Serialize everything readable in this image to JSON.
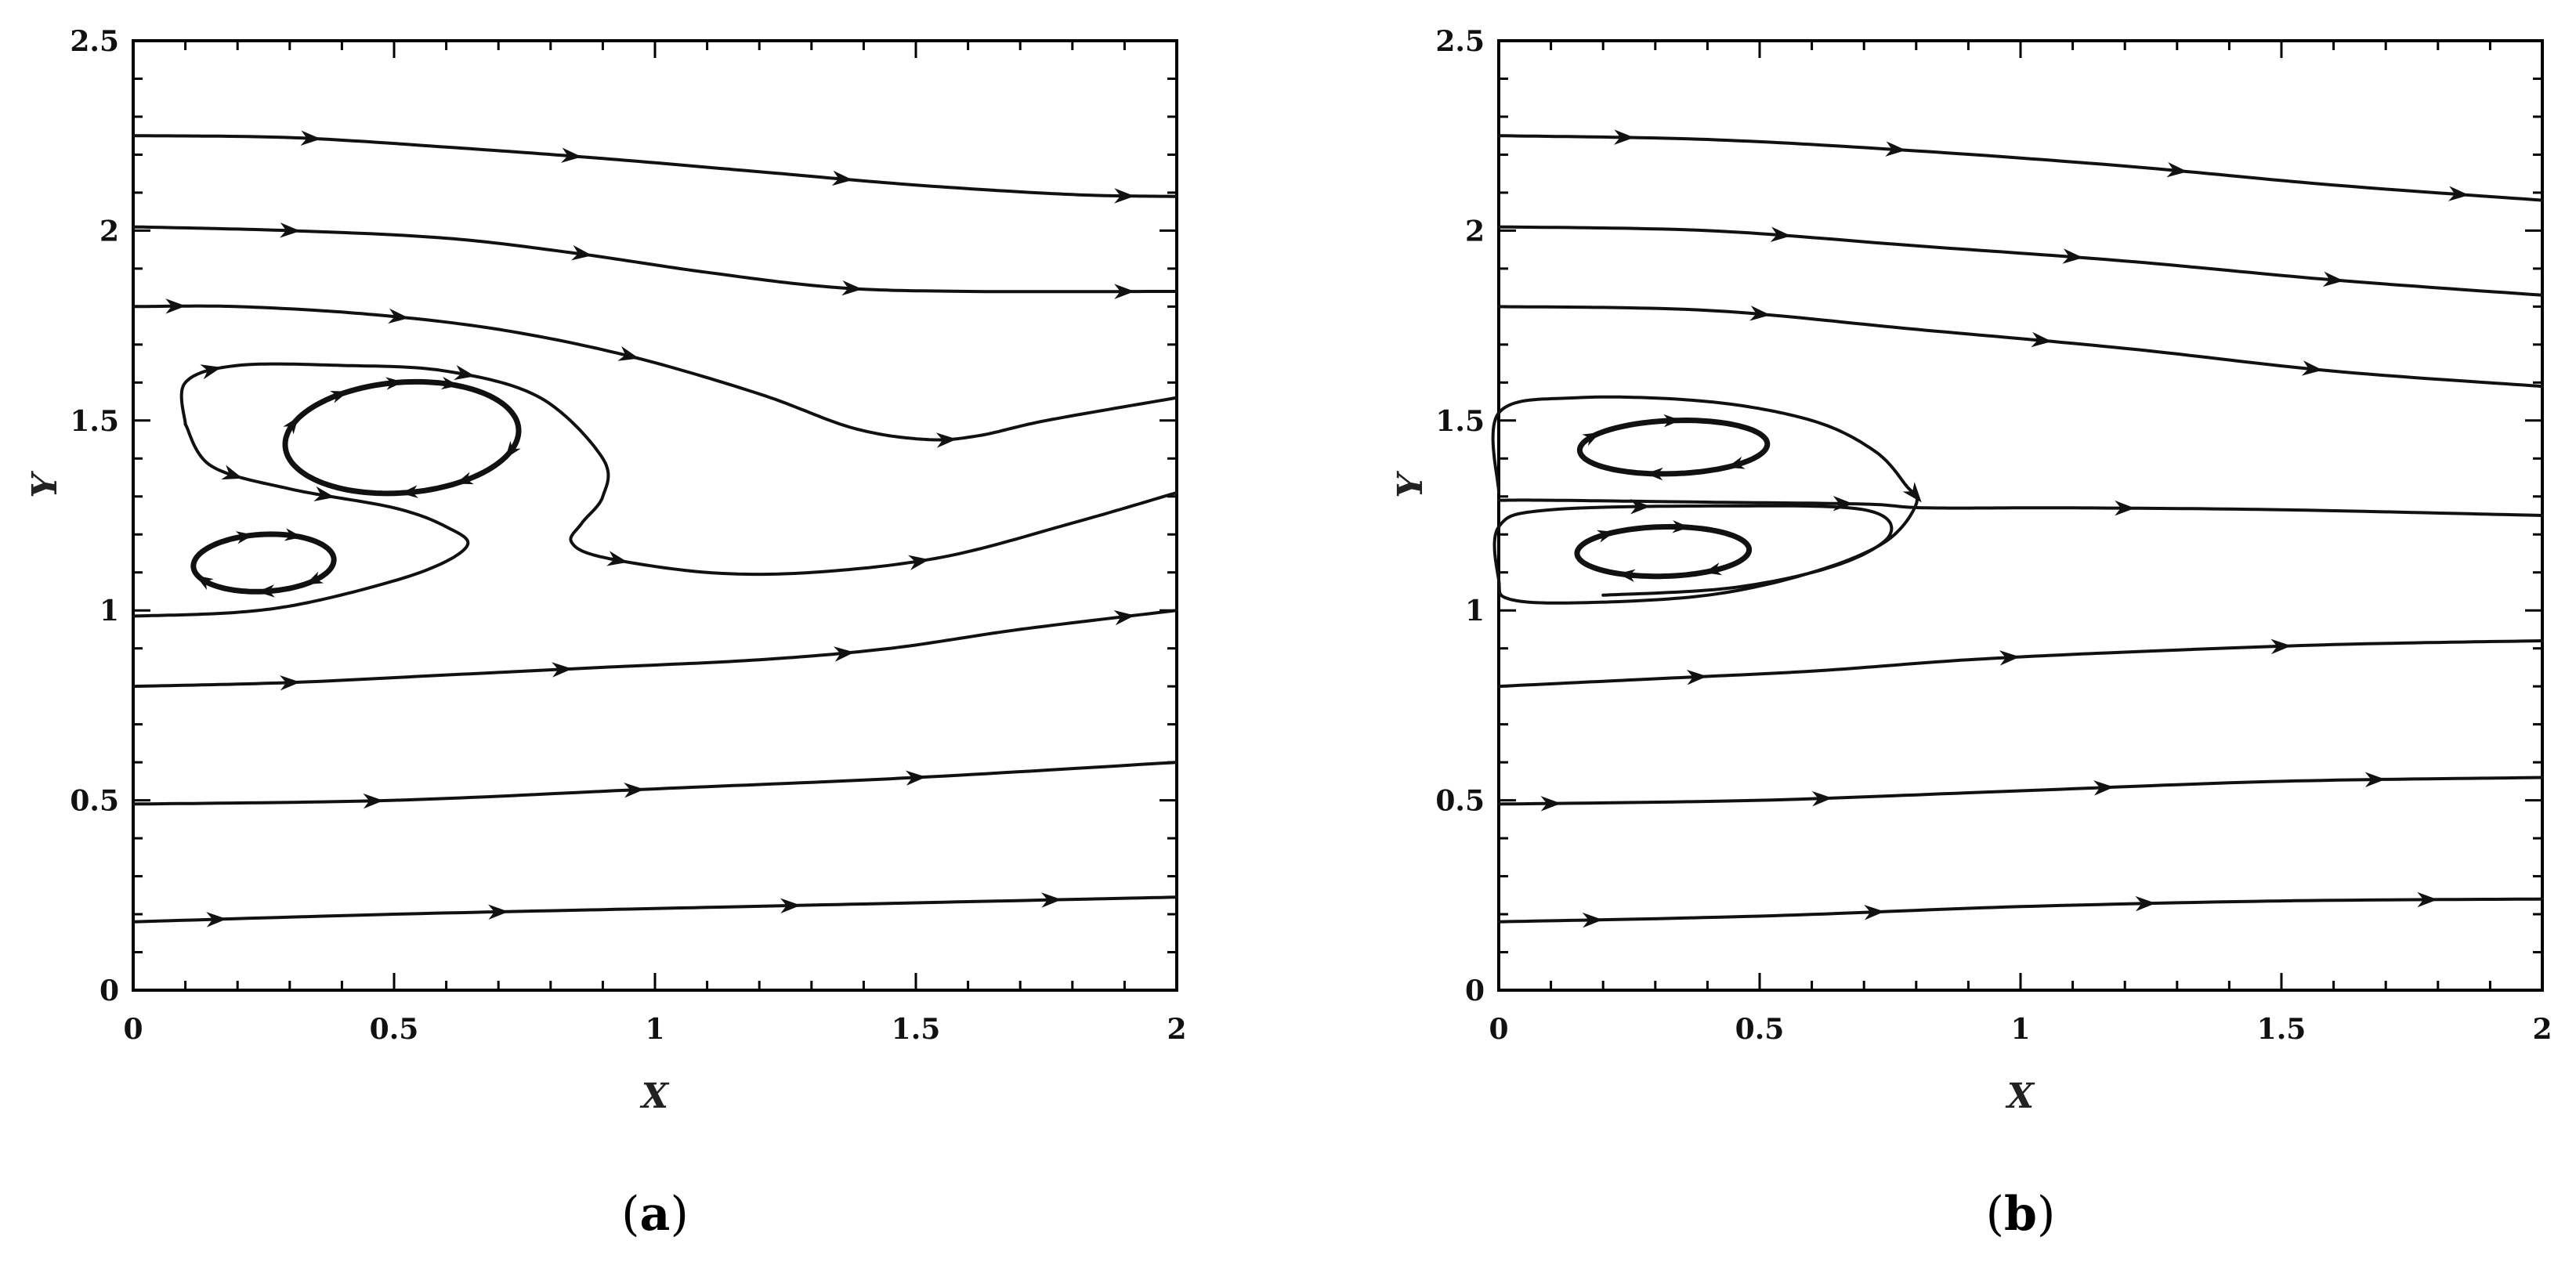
{
  "chart_data": [
    {
      "type": "streamline",
      "panel_label": "a",
      "xlabel": "X",
      "ylabel": "Y",
      "xlim": [
        0,
        2
      ],
      "ylim": [
        0,
        2.5
      ],
      "xticks": [
        0,
        0.5,
        1,
        1.5,
        2
      ],
      "yticks": [
        0,
        0.5,
        1,
        1.5,
        2,
        2.5
      ],
      "xtick_labels": [
        "0",
        "0.5",
        "1",
        "1.5",
        "2"
      ],
      "ytick_labels": [
        "0",
        "0.5",
        "1",
        "1.5",
        "2",
        "2.5"
      ],
      "grid": false,
      "streamlines": [
        {
          "heavy": false,
          "closed": false,
          "arrows": [
            0.17,
            0.42,
            0.68,
            0.95
          ],
          "points": [
            [
              0,
              2.25
            ],
            [
              0.3,
              2.245
            ],
            [
              0.6,
              2.22
            ],
            [
              0.9,
              2.19
            ],
            [
              1.2,
              2.155
            ],
            [
              1.5,
              2.12
            ],
            [
              1.8,
              2.095
            ],
            [
              2,
              2.09
            ]
          ]
        },
        {
          "heavy": false,
          "closed": false,
          "arrows": [
            0.15,
            0.43,
            0.69,
            0.95
          ],
          "points": [
            [
              0,
              2.01
            ],
            [
              0.3,
              2.0
            ],
            [
              0.6,
              1.98
            ],
            [
              0.85,
              1.94
            ],
            [
              1.1,
              1.89
            ],
            [
              1.35,
              1.85
            ],
            [
              1.6,
              1.84
            ],
            [
              2,
              1.84
            ]
          ]
        },
        {
          "heavy": false,
          "closed": false,
          "arrows": [
            0.04,
            0.25,
            0.47,
            0.78
          ],
          "points": [
            [
              0,
              1.8
            ],
            [
              0.2,
              1.8
            ],
            [
              0.45,
              1.78
            ],
            [
              0.7,
              1.74
            ],
            [
              0.95,
              1.67
            ],
            [
              1.2,
              1.57
            ],
            [
              1.38,
              1.48
            ],
            [
              1.52,
              1.45
            ],
            [
              1.62,
              1.46
            ],
            [
              1.75,
              1.5
            ],
            [
              2,
              1.56
            ]
          ]
        },
        {
          "heavy": false,
          "closed": false,
          "arrows": [
            0.06,
            0.27,
            0.53,
            0.78
          ],
          "points": [
            [
              0.1,
              1.49
            ],
            [
              0.1,
              1.6
            ],
            [
              0.2,
              1.645
            ],
            [
              0.4,
              1.645
            ],
            [
              0.6,
              1.63
            ],
            [
              0.78,
              1.56
            ],
            [
              0.9,
              1.4
            ],
            [
              0.9,
              1.3
            ],
            [
              0.86,
              1.23
            ],
            [
              0.84,
              1.18
            ],
            [
              0.9,
              1.14
            ],
            [
              1.1,
              1.1
            ],
            [
              1.3,
              1.1
            ],
            [
              1.55,
              1.14
            ],
            [
              1.8,
              1.23
            ],
            [
              2,
              1.31
            ]
          ]
        },
        {
          "heavy": false,
          "closed": false,
          "arrows": [
            0.11,
            0.25
          ],
          "points": [
            [
              0.1,
              1.49
            ],
            [
              0.15,
              1.38
            ],
            [
              0.3,
              1.32
            ],
            [
              0.5,
              1.27
            ],
            [
              0.6,
              1.22
            ],
            [
              0.64,
              1.17
            ],
            [
              0.55,
              1.1
            ],
            [
              0.35,
              1.025
            ],
            [
              0.2,
              0.995
            ],
            [
              0,
              0.985
            ]
          ]
        },
        {
          "heavy": false,
          "closed": false,
          "arrows": [
            0.15,
            0.41,
            0.68,
            0.95
          ],
          "points": [
            [
              0,
              0.8
            ],
            [
              0.3,
              0.81
            ],
            [
              0.6,
              0.83
            ],
            [
              0.9,
              0.85
            ],
            [
              1.2,
              0.87
            ],
            [
              1.45,
              0.9
            ],
            [
              1.7,
              0.95
            ],
            [
              2,
              1.0
            ]
          ]
        },
        {
          "heavy": false,
          "closed": false,
          "arrows": [
            0.23,
            0.48,
            0.75
          ],
          "points": [
            [
              0,
              0.49
            ],
            [
              0.5,
              0.5
            ],
            [
              1.0,
              0.53
            ],
            [
              1.5,
              0.56
            ],
            [
              2,
              0.6
            ]
          ]
        },
        {
          "heavy": false,
          "closed": false,
          "arrows": [
            0.08,
            0.35,
            0.63,
            0.88
          ],
          "points": [
            [
              0,
              0.18
            ],
            [
              0.5,
              0.2
            ],
            [
              1.0,
              0.215
            ],
            [
              1.5,
              0.23
            ],
            [
              2,
              0.245
            ]
          ]
        },
        {
          "heavy": true,
          "closed": true,
          "arrows": [
            0.05,
            0.15,
            0.25,
            0.55,
            0.65,
            0.75,
            0.85
          ],
          "ellipse": {
            "cx": 0.515,
            "cy": 1.455,
            "rx": 0.225,
            "ry": 0.145,
            "rot": 8
          }
        },
        {
          "heavy": true,
          "closed": true,
          "arrows": [
            0.1,
            0.25,
            0.45,
            0.7,
            0.85
          ],
          "ellipse": {
            "cx": 0.25,
            "cy": 1.125,
            "rx": 0.135,
            "ry": 0.075,
            "rot": 5
          }
        }
      ]
    },
    {
      "type": "streamline",
      "panel_label": "b",
      "xlabel": "X",
      "ylabel": "Y",
      "xlim": [
        0,
        2
      ],
      "ylim": [
        0,
        2.5
      ],
      "xticks": [
        0,
        0.5,
        1,
        1.5,
        2
      ],
      "yticks": [
        0,
        0.5,
        1,
        1.5,
        2,
        2.5
      ],
      "xtick_labels": [
        "0",
        "0.5",
        "1",
        "1.5",
        "2"
      ],
      "ytick_labels": [
        "0",
        "0.5",
        "1",
        "1.5",
        "2",
        "2.5"
      ],
      "grid": false,
      "streamlines": [
        {
          "heavy": false,
          "closed": false,
          "arrows": [
            0.12,
            0.38,
            0.65,
            0.92
          ],
          "points": [
            [
              0,
              2.25
            ],
            [
              0.4,
              2.24
            ],
            [
              0.8,
              2.21
            ],
            [
              1.2,
              2.17
            ],
            [
              1.6,
              2.12
            ],
            [
              2,
              2.08
            ]
          ]
        },
        {
          "heavy": false,
          "closed": false,
          "arrows": [
            0.27,
            0.55,
            0.8
          ],
          "points": [
            [
              0,
              2.01
            ],
            [
              0.4,
              2.0
            ],
            [
              0.8,
              1.96
            ],
            [
              1.2,
              1.92
            ],
            [
              1.6,
              1.87
            ],
            [
              2,
              1.83
            ]
          ]
        },
        {
          "heavy": false,
          "closed": false,
          "arrows": [
            0.25,
            0.52,
            0.78
          ],
          "points": [
            [
              0,
              1.8
            ],
            [
              0.4,
              1.79
            ],
            [
              0.8,
              1.74
            ],
            [
              1.2,
              1.69
            ],
            [
              1.6,
              1.63
            ],
            [
              2,
              1.59
            ]
          ]
        },
        {
          "heavy": false,
          "closed": false,
          "arrows": [
            0.33,
            0.6
          ],
          "points": [
            [
              0,
              1.29
            ],
            [
              0.1,
              1.29
            ],
            [
              0.4,
              1.285
            ],
            [
              0.7,
              1.28
            ],
            [
              0.82,
              1.27
            ],
            [
              1.1,
              1.27
            ],
            [
              1.5,
              1.265
            ],
            [
              2,
              1.25
            ]
          ]
        },
        {
          "heavy": false,
          "closed": false,
          "arrows": [
            0.3,
            0.68
          ],
          "points": [
            [
              0,
              1.31
            ],
            [
              0,
              1.52
            ],
            [
              0.15,
              1.56
            ],
            [
              0.4,
              1.55
            ],
            [
              0.6,
              1.5
            ],
            [
              0.72,
              1.42
            ],
            [
              0.78,
              1.33
            ],
            [
              0.8,
              1.28
            ],
            [
              0.74,
              1.18
            ],
            [
              0.6,
              1.1
            ],
            [
              0.4,
              1.04
            ],
            [
              0.15,
              1.02
            ],
            [
              0.02,
              1.03
            ],
            [
              0,
              1.08
            ],
            [
              0,
              1.22
            ],
            [
              0.1,
              1.265
            ],
            [
              0.45,
              1.275
            ],
            [
              0.7,
              1.265
            ],
            [
              0.75,
              1.2
            ],
            [
              0.65,
              1.12
            ],
            [
              0.45,
              1.06
            ],
            [
              0.2,
              1.04
            ]
          ]
        },
        {
          "heavy": false,
          "closed": false,
          "arrows": [
            0.19,
            0.49,
            0.75
          ],
          "points": [
            [
              0,
              0.8
            ],
            [
              0.3,
              0.82
            ],
            [
              0.6,
              0.84
            ],
            [
              0.9,
              0.87
            ],
            [
              1.2,
              0.89
            ],
            [
              1.6,
              0.91
            ],
            [
              2,
              0.92
            ]
          ]
        },
        {
          "heavy": false,
          "closed": false,
          "arrows": [
            0.05,
            0.31,
            0.58,
            0.84
          ],
          "points": [
            [
              0,
              0.49
            ],
            [
              0.5,
              0.5
            ],
            [
              1.0,
              0.525
            ],
            [
              1.5,
              0.55
            ],
            [
              2,
              0.56
            ]
          ]
        },
        {
          "heavy": false,
          "closed": false,
          "arrows": [
            0.09,
            0.36,
            0.62,
            0.89
          ],
          "points": [
            [
              0,
              0.18
            ],
            [
              0.5,
              0.195
            ],
            [
              1.0,
              0.22
            ],
            [
              1.5,
              0.235
            ],
            [
              2,
              0.24
            ]
          ]
        },
        {
          "heavy": true,
          "closed": true,
          "arrows": [
            0.1,
            0.3,
            0.55,
            0.75
          ],
          "ellipse": {
            "cx": 0.335,
            "cy": 1.43,
            "rx": 0.18,
            "ry": 0.07,
            "rot": 3
          }
        },
        {
          "heavy": true,
          "closed": true,
          "arrows": [
            0.12,
            0.35,
            0.6,
            0.8
          ],
          "ellipse": {
            "cx": 0.315,
            "cy": 1.155,
            "rx": 0.165,
            "ry": 0.065,
            "rot": 2
          }
        }
      ]
    }
  ]
}
